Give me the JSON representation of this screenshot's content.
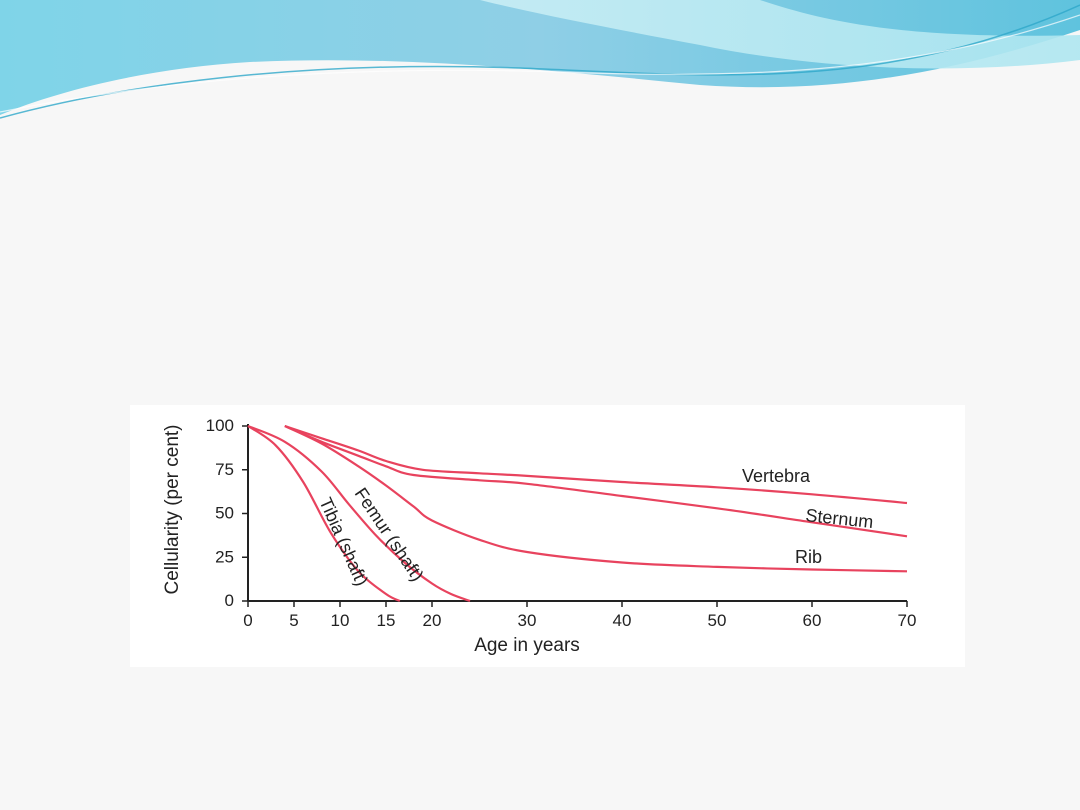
{
  "theme": {
    "series_color": "#e8435e",
    "wave_colors": [
      "#6fd3e6",
      "#9fe2ee",
      "#2ea8c9"
    ]
  },
  "chart_data": {
    "type": "line",
    "xlabel": "Age in years",
    "ylabel": "Cellularity (per cent)",
    "x_ticks": [
      "0",
      "5",
      "10",
      "15",
      "20",
      "30",
      "40",
      "50",
      "60",
      "70"
    ],
    "y_ticks": [
      "0",
      "25",
      "50",
      "75",
      "100"
    ],
    "xlim": [
      0,
      70
    ],
    "ylim": [
      0,
      100
    ],
    "grid": false,
    "legend": "none",
    "series": [
      {
        "name": "Vertebra",
        "x": [
          4,
          8,
          12,
          15,
          19,
          25,
          30,
          40,
          50,
          60,
          70
        ],
        "y": [
          100,
          93,
          86,
          80,
          75,
          73,
          71.5,
          68,
          65,
          61,
          56
        ]
      },
      {
        "name": "Sternum",
        "x": [
          4,
          8,
          12,
          15,
          18,
          25,
          30,
          40,
          50,
          60,
          70
        ],
        "y": [
          100,
          91,
          83,
          77,
          72,
          69,
          67,
          60,
          53,
          45,
          37
        ]
      },
      {
        "name": "Rib",
        "x": [
          4,
          8,
          12,
          15,
          18,
          20,
          25,
          30,
          40,
          50,
          60,
          70
        ],
        "y": [
          100,
          90,
          77,
          66,
          54,
          46,
          35,
          28,
          22,
          19.5,
          18,
          17
        ]
      },
      {
        "name": "Femur (shaft)",
        "x": [
          0,
          4,
          8,
          11,
          14,
          17,
          20,
          22,
          24
        ],
        "y": [
          100,
          91,
          74,
          55,
          37,
          22,
          10,
          4,
          0
        ]
      },
      {
        "name": "Tibia (shaft)",
        "x": [
          0,
          3,
          6,
          9,
          12,
          15,
          16.5
        ],
        "y": [
          100,
          89,
          68,
          39,
          17,
          4,
          0
        ]
      }
    ]
  }
}
